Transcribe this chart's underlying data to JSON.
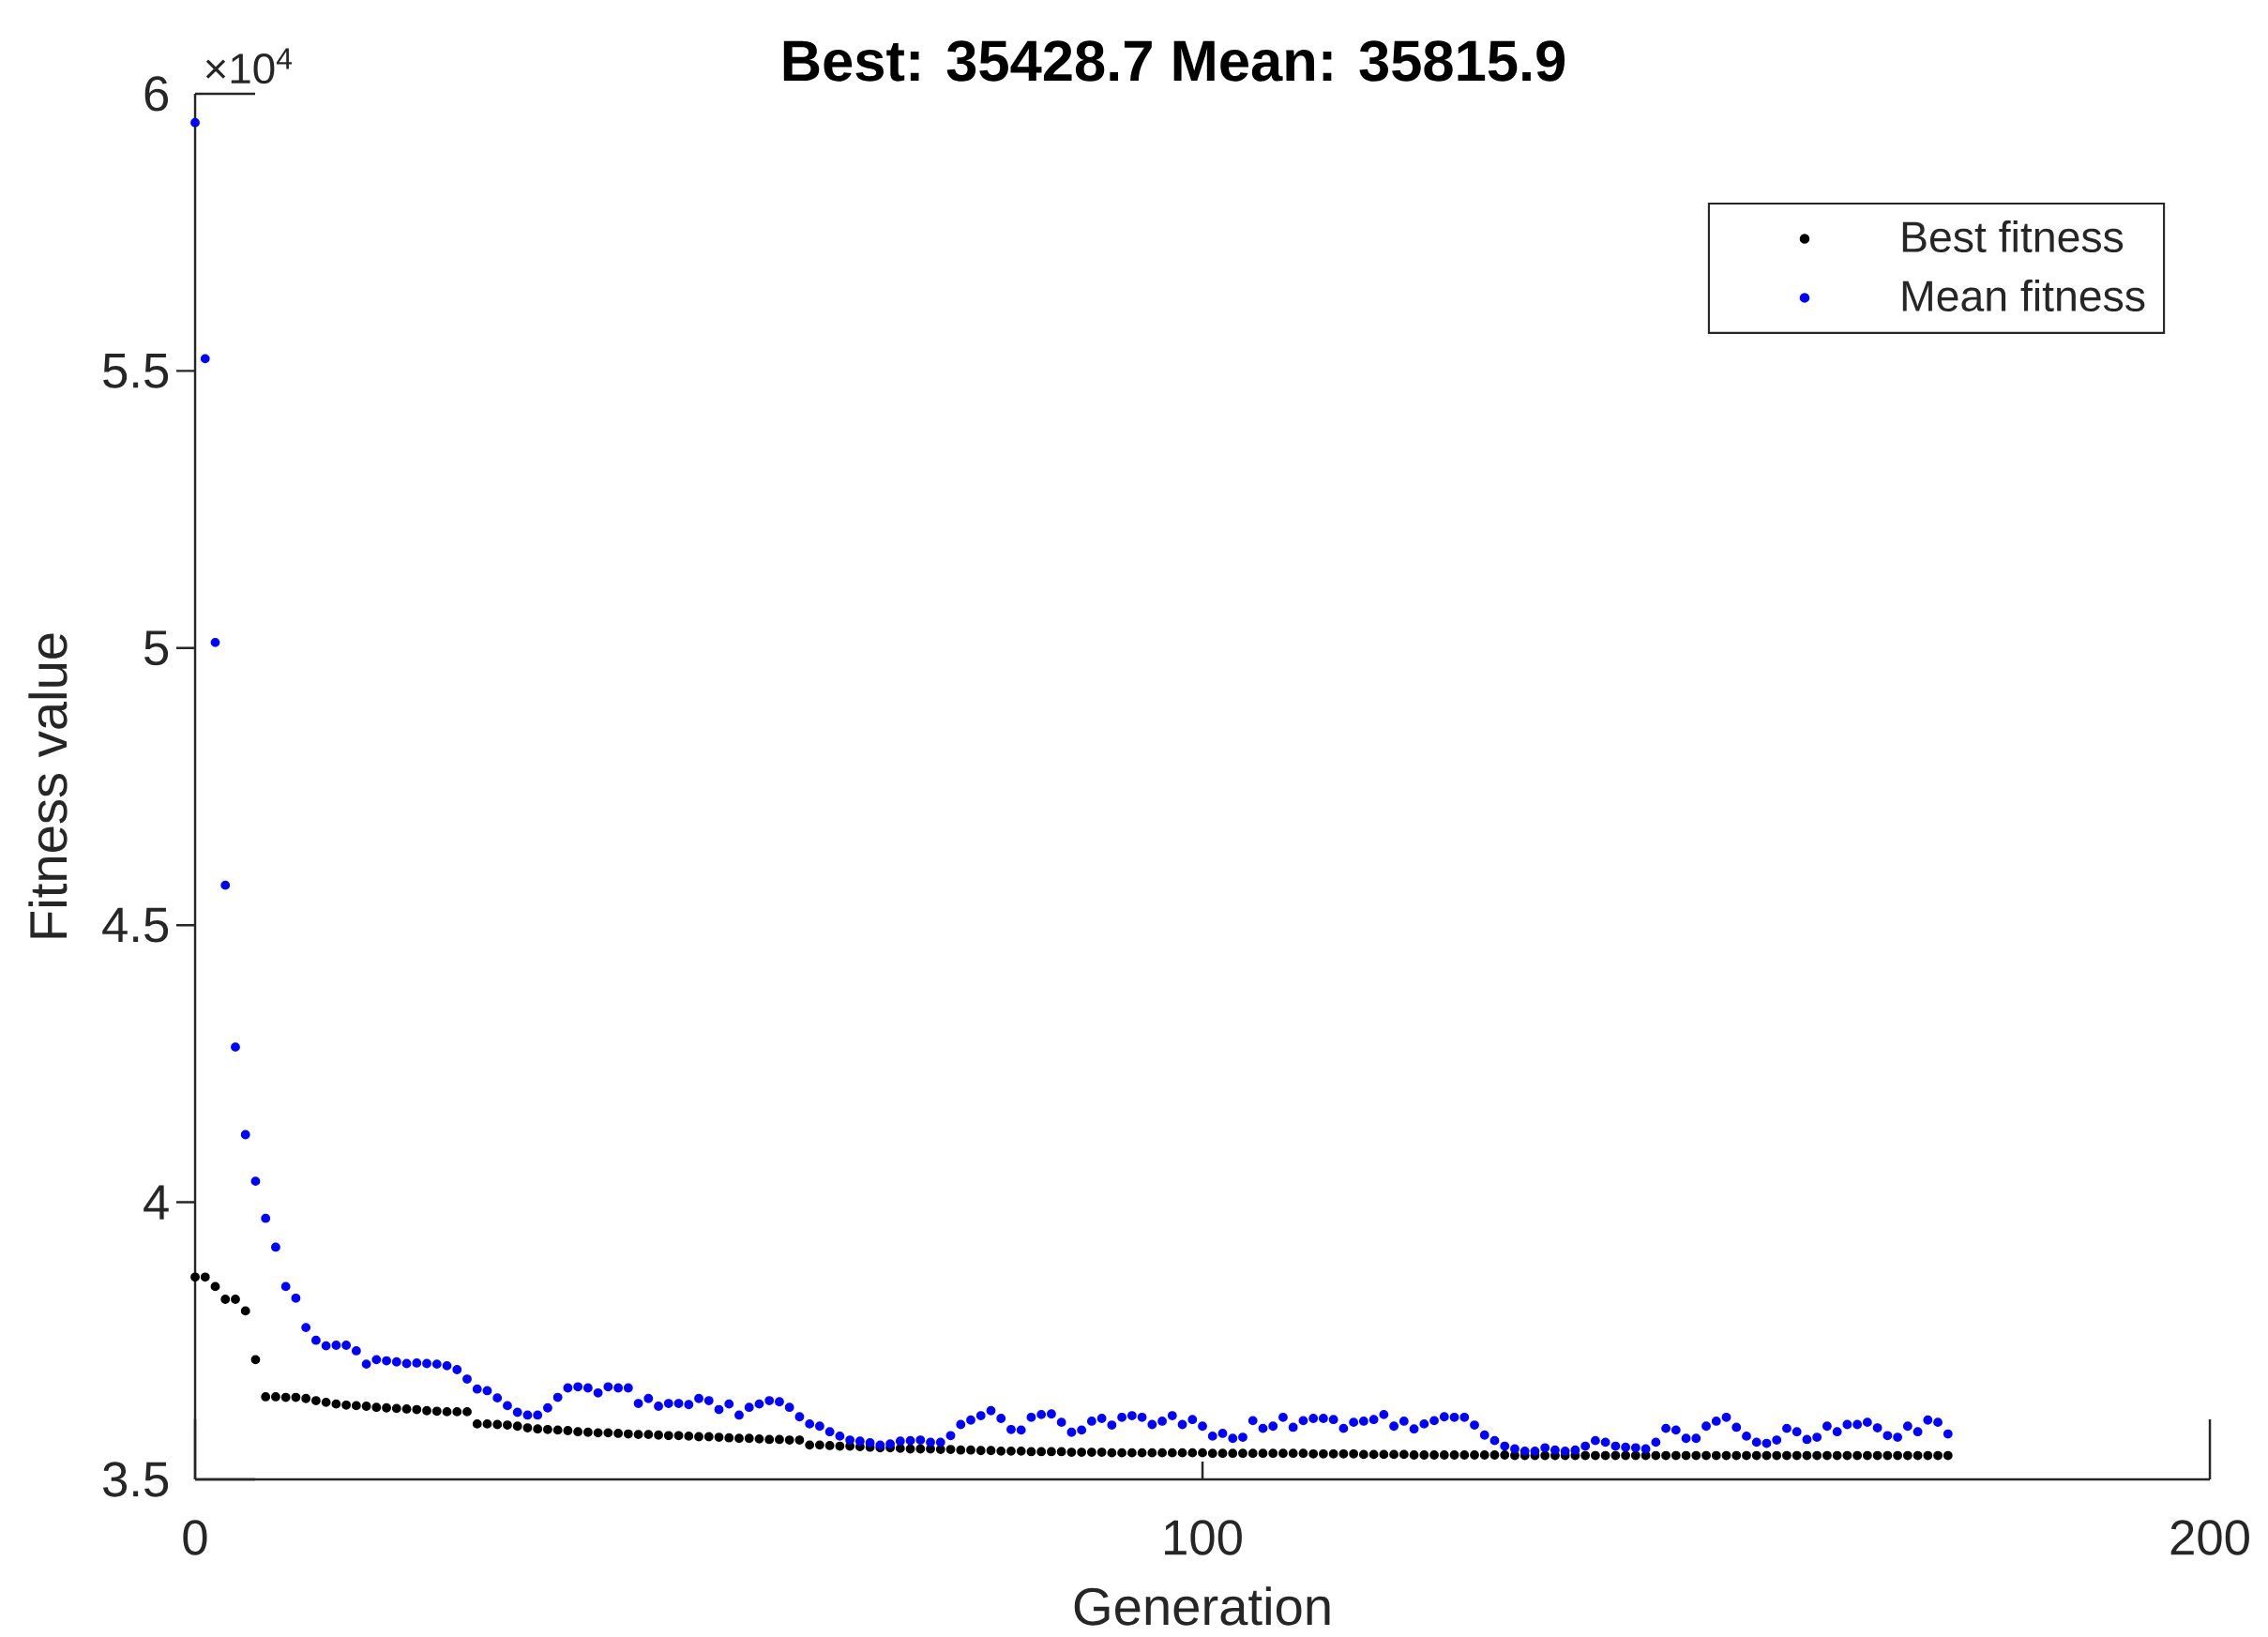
{
  "chart_data": {
    "type": "scatter",
    "title": "Best: 35428.7 Mean: 35815.9",
    "xlabel": "Generation",
    "ylabel": "Fitness value",
    "annotations": [
      "×10$^{4}$"
    ],
    "x": [
      0,
      1,
      2,
      3,
      4,
      5,
      6,
      7,
      8,
      9,
      10,
      11,
      12,
      13,
      14,
      15,
      16,
      17,
      18,
      19,
      20,
      21,
      22,
      23,
      24,
      25,
      26,
      27,
      28,
      29,
      30,
      31,
      32,
      33,
      34,
      35,
      36,
      37,
      38,
      39,
      40,
      41,
      42,
      43,
      44,
      45,
      46,
      47,
      48,
      49,
      50,
      51,
      52,
      53,
      54,
      55,
      56,
      57,
      58,
      59,
      60,
      61,
      62,
      63,
      64,
      65,
      66,
      67,
      68,
      69,
      70,
      71,
      72,
      73,
      74,
      75,
      76,
      77,
      78,
      79,
      80,
      81,
      82,
      83,
      84,
      85,
      86,
      87,
      88,
      89,
      90,
      91,
      92,
      93,
      94,
      95,
      96,
      97,
      98,
      99,
      100,
      101,
      102,
      103,
      104,
      105,
      106,
      107,
      108,
      109,
      110,
      111,
      112,
      113,
      114,
      115,
      116,
      117,
      118,
      119,
      120,
      121,
      122,
      123,
      124,
      125,
      126,
      127,
      128,
      129,
      130,
      131,
      132,
      133,
      134,
      135,
      136,
      137,
      138,
      139,
      140,
      141,
      142,
      143,
      144,
      145,
      146,
      147,
      148,
      149,
      150,
      151,
      152,
      153,
      154,
      155,
      156,
      157,
      158,
      159,
      160,
      161,
      162,
      163,
      164,
      165,
      166,
      167,
      168,
      169,
      170,
      171,
      172,
      173,
      174
    ],
    "series": [
      {
        "name": "Best fitness",
        "color": "#000000",
        "values": [
          3.865,
          3.865,
          3.848,
          3.825,
          3.825,
          3.804,
          3.716,
          3.649,
          3.649,
          3.648,
          3.648,
          3.646,
          3.642,
          3.639,
          3.636,
          3.634,
          3.633,
          3.632,
          3.63,
          3.629,
          3.628,
          3.627,
          3.626,
          3.624,
          3.623,
          3.622,
          3.622,
          3.622,
          3.6,
          3.6,
          3.599,
          3.598,
          3.596,
          3.593,
          3.591,
          3.59,
          3.589,
          3.588,
          3.586,
          3.585,
          3.584,
          3.584,
          3.583,
          3.582,
          3.581,
          3.581,
          3.58,
          3.579,
          3.579,
          3.578,
          3.577,
          3.577,
          3.576,
          3.575,
          3.574,
          3.574,
          3.573,
          3.572,
          3.572,
          3.571,
          3.571,
          3.562,
          3.562,
          3.561,
          3.56,
          3.56,
          3.559,
          3.558,
          3.557,
          3.557,
          3.556,
          3.555,
          3.555,
          3.555,
          3.554,
          3.554,
          3.553,
          3.553,
          3.552,
          3.552,
          3.551,
          3.551,
          3.551,
          3.55,
          3.55,
          3.55,
          3.55,
          3.549,
          3.549,
          3.549,
          3.549,
          3.548,
          3.548,
          3.548,
          3.548,
          3.548,
          3.548,
          3.548,
          3.548,
          3.548,
          3.548,
          3.547,
          3.547,
          3.547,
          3.547,
          3.547,
          3.547,
          3.547,
          3.547,
          3.547,
          3.547,
          3.546,
          3.546,
          3.546,
          3.546,
          3.546,
          3.545,
          3.545,
          3.545,
          3.545,
          3.545,
          3.544,
          3.544,
          3.544,
          3.544,
          3.544,
          3.544,
          3.544,
          3.544,
          3.544,
          3.544,
          3.543,
          3.543,
          3.543,
          3.543,
          3.543,
          3.543,
          3.543,
          3.543,
          3.543,
          3.543,
          3.543,
          3.543,
          3.543,
          3.543,
          3.543,
          3.543,
          3.543,
          3.543,
          3.543,
          3.543,
          3.543,
          3.543,
          3.543,
          3.543,
          3.543,
          3.543,
          3.543,
          3.543,
          3.543,
          3.543,
          3.543,
          3.543,
          3.543,
          3.543,
          3.543,
          3.543,
          3.543,
          3.543,
          3.543,
          3.543,
          3.543,
          3.543,
          3.543,
          3.543
        ]
      },
      {
        "name": "Mean fitness",
        "color": "#0000ff",
        "values": [
          5.948,
          5.522,
          5.01,
          4.572,
          4.28,
          4.122,
          4.038,
          3.971,
          3.919,
          3.848,
          3.827,
          3.774,
          3.751,
          3.741,
          3.742,
          3.742,
          3.732,
          3.708,
          3.716,
          3.714,
          3.712,
          3.709,
          3.71,
          3.709,
          3.708,
          3.705,
          3.698,
          3.681,
          3.663,
          3.66,
          3.647,
          3.633,
          3.621,
          3.616,
          3.616,
          3.629,
          3.648,
          3.665,
          3.667,
          3.665,
          3.656,
          3.667,
          3.665,
          3.665,
          3.637,
          3.646,
          3.632,
          3.637,
          3.637,
          3.635,
          3.646,
          3.642,
          3.626,
          3.636,
          3.616,
          3.63,
          3.636,
          3.642,
          3.64,
          3.63,
          3.613,
          3.6,
          3.596,
          3.586,
          3.578,
          3.571,
          3.569,
          3.566,
          3.562,
          3.564,
          3.569,
          3.57,
          3.571,
          3.567,
          3.567,
          3.579,
          3.599,
          3.607,
          3.615,
          3.624,
          3.61,
          3.59,
          3.589,
          3.612,
          3.617,
          3.618,
          3.603,
          3.585,
          3.589,
          3.605,
          3.61,
          3.598,
          3.612,
          3.615,
          3.612,
          3.599,
          3.605,
          3.615,
          3.599,
          3.608,
          3.596,
          3.578,
          3.583,
          3.574,
          3.576,
          3.606,
          3.592,
          3.596,
          3.612,
          3.594,
          3.606,
          3.61,
          3.61,
          3.608,
          3.592,
          3.603,
          3.605,
          3.608,
          3.617,
          3.596,
          3.605,
          3.591,
          3.6,
          3.606,
          3.613,
          3.612,
          3.612,
          3.598,
          3.58,
          3.57,
          3.56,
          3.555,
          3.551,
          3.551,
          3.557,
          3.553,
          3.551,
          3.553,
          3.56,
          3.57,
          3.567,
          3.56,
          3.558,
          3.557,
          3.555,
          3.567,
          3.592,
          3.589,
          3.574,
          3.574,
          3.596,
          3.605,
          3.612,
          3.594,
          3.578,
          3.567,
          3.565,
          3.571,
          3.592,
          3.586,
          3.572,
          3.576,
          3.596,
          3.586,
          3.599,
          3.599,
          3.603,
          3.593,
          3.579,
          3.576,
          3.596,
          3.586,
          3.607,
          3.603,
          3.582
        ]
      }
    ],
    "xlim": [
      0,
      200
    ],
    "xticks": [
      0,
      100,
      200
    ],
    "ylim": [
      3.5,
      6
    ],
    "yticks": [
      3.5,
      4,
      4.5,
      5,
      5.5,
      6
    ],
    "legend": "top right",
    "marker": "circle"
  }
}
